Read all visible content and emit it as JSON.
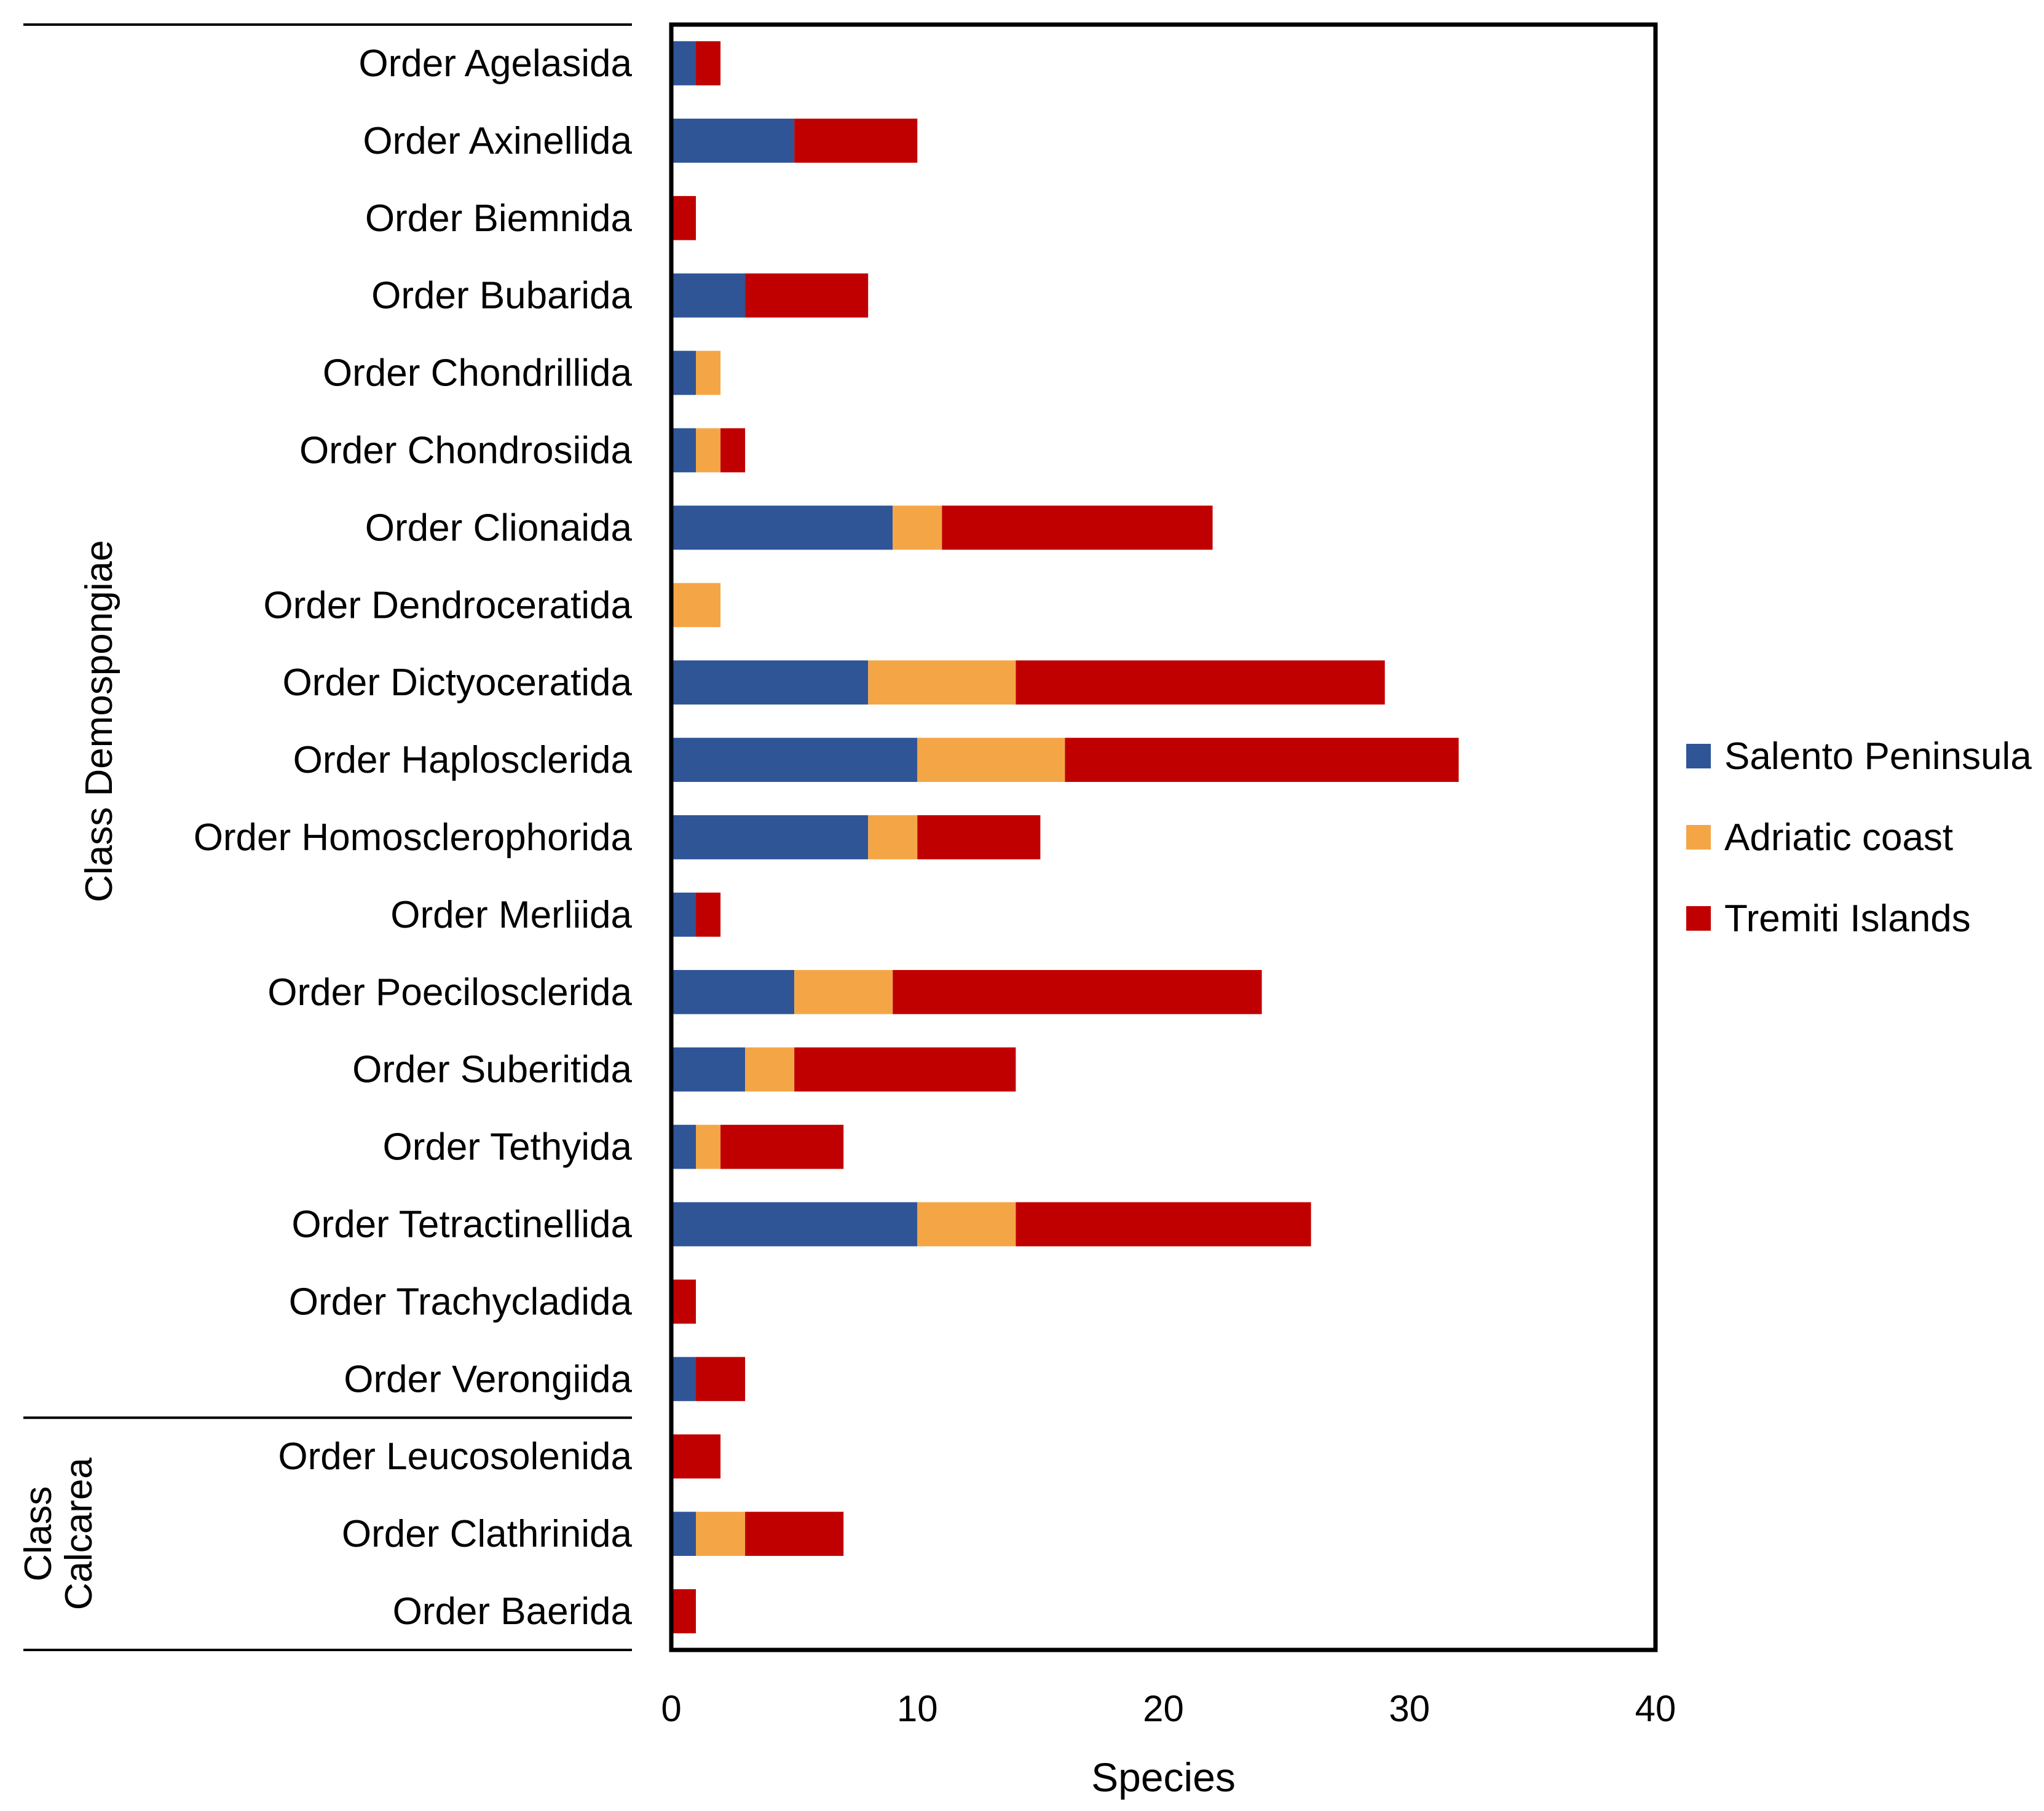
{
  "chart_data": {
    "type": "bar",
    "orientation": "horizontal",
    "stacked": true,
    "title": "",
    "xlabel": "Species",
    "ylabel": "",
    "xlim": [
      0,
      40
    ],
    "xticks": [
      0,
      10,
      20,
      30,
      40
    ],
    "grid": false,
    "legend_position": "right",
    "categories": [
      "Order Agelasida",
      "Order Axinellida",
      "Order Biemnida",
      "Order Bubarida",
      "Order Chondrillida",
      "Order Chondrosiida",
      "Order Clionaida",
      "Order Dendroceratida",
      "Order Dictyoceratida",
      "Order Haplosclerida",
      "Order Homosclerophorida",
      "Order Merliida",
      "Order Poecilosclerida",
      "Order Suberitida",
      "Order Tethyida",
      "Order Tetractinellida",
      "Order Trachycladida",
      "Order Verongiida",
      "Order Leucosolenida",
      "Order Clathrinida",
      "Order Baerida"
    ],
    "series": [
      {
        "name": "Salento Peninsula",
        "color": "#2F5597",
        "values": [
          1,
          5,
          0,
          3,
          1,
          1,
          9,
          0,
          8,
          10,
          8,
          1,
          5,
          3,
          1,
          10,
          0,
          1,
          0,
          1,
          0
        ]
      },
      {
        "name": "Adriatic coast",
        "color": "#F4A646",
        "values": [
          0,
          0,
          0,
          0,
          1,
          1,
          2,
          2,
          6,
          6,
          2,
          0,
          4,
          2,
          1,
          4,
          0,
          0,
          0,
          2,
          0
        ]
      },
      {
        "name": "Tremiti Islands",
        "color": "#C00000",
        "values": [
          1,
          5,
          1,
          5,
          0,
          1,
          11,
          0,
          15,
          16,
          5,
          1,
          15,
          9,
          5,
          12,
          1,
          2,
          2,
          4,
          1
        ]
      }
    ],
    "groups": [
      {
        "label": "Class Demospongiae",
        "lines": [
          "Class Demospongiae"
        ],
        "start": 0,
        "end": 17
      },
      {
        "label": "Class Calcarea",
        "lines": [
          "Class",
          "Calcarea"
        ],
        "start": 18,
        "end": 20
      }
    ]
  }
}
